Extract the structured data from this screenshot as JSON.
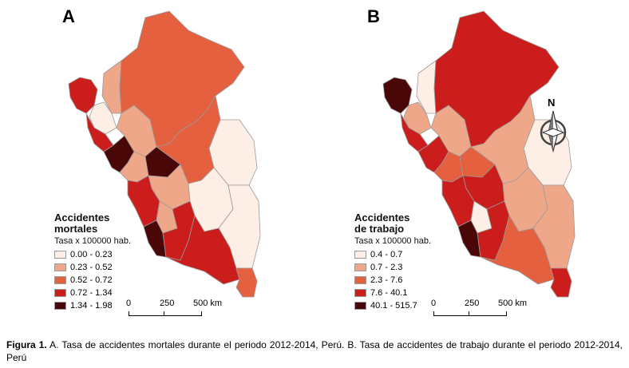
{
  "panel_a": {
    "letter": "A",
    "legend_title_line1": "Accidentes",
    "legend_title_line2": "mortales",
    "legend_subtitle": "Tasa x 100000 hab.",
    "classes": [
      {
        "label": "0.00 - 0.23",
        "color": "#fdeee6"
      },
      {
        "label": "0.23 - 0.52",
        "color": "#efa789"
      },
      {
        "label": "0.52 - 0.72",
        "color": "#e4603f"
      },
      {
        "label": "0.72 - 1.34",
        "color": "#cc1d1d"
      },
      {
        "label": "1.34 - 1.98",
        "color": "#4a0707"
      }
    ],
    "scale_labels": [
      "0",
      "250",
      "500 km"
    ]
  },
  "panel_b": {
    "letter": "B",
    "legend_title_line1": "Accidentes",
    "legend_title_line2": "de trabajo",
    "legend_subtitle": "Tasa x 100000 hab.",
    "classes": [
      {
        "label": "0.4 - 0.7",
        "color": "#fdeee6"
      },
      {
        "label": "0.7 - 2.3",
        "color": "#efa789"
      },
      {
        "label": "2.3 - 7.6",
        "color": "#e4603f"
      },
      {
        "label": "7.6 - 40.1",
        "color": "#cc1d1d"
      },
      {
        "label": "40.1 - 515.7",
        "color": "#4a0707"
      }
    ],
    "scale_labels": [
      "0",
      "250",
      "500 km"
    ],
    "north_label": "N"
  },
  "regions_a": [
    {
      "class": 3
    },
    {
      "class": 0
    },
    {
      "class": 1
    },
    {
      "class": 2
    },
    {
      "class": 1
    },
    {
      "class": 3
    },
    {
      "class": 4
    },
    {
      "class": 1
    },
    {
      "class": 4
    },
    {
      "class": 2
    },
    {
      "class": 1
    },
    {
      "class": 0
    },
    {
      "class": 3
    },
    {
      "class": 1
    },
    {
      "class": 0
    },
    {
      "class": 0
    },
    {
      "class": 4
    },
    {
      "class": 3
    },
    {
      "class": 3
    },
    {
      "class": 2
    }
  ],
  "regions_b": [
    {
      "class": 4
    },
    {
      "class": 1
    },
    {
      "class": 0
    },
    {
      "class": 3
    },
    {
      "class": 1
    },
    {
      "class": 3
    },
    {
      "class": 3
    },
    {
      "class": 2
    },
    {
      "class": 2
    },
    {
      "class": 1
    },
    {
      "class": 3
    },
    {
      "class": 0
    },
    {
      "class": 3
    },
    {
      "class": 0
    },
    {
      "class": 1
    },
    {
      "class": 1
    },
    {
      "class": 4
    },
    {
      "class": 3
    },
    {
      "class": 2
    },
    {
      "class": 3
    }
  ],
  "caption": {
    "label": "Figura 1.",
    "text": " A. Tasa de accidentes mortales durante el periodo 2012-2014, Perú. B. Tasa de accidentes de trabajo durante el periodo 2012-2014, Perú"
  }
}
